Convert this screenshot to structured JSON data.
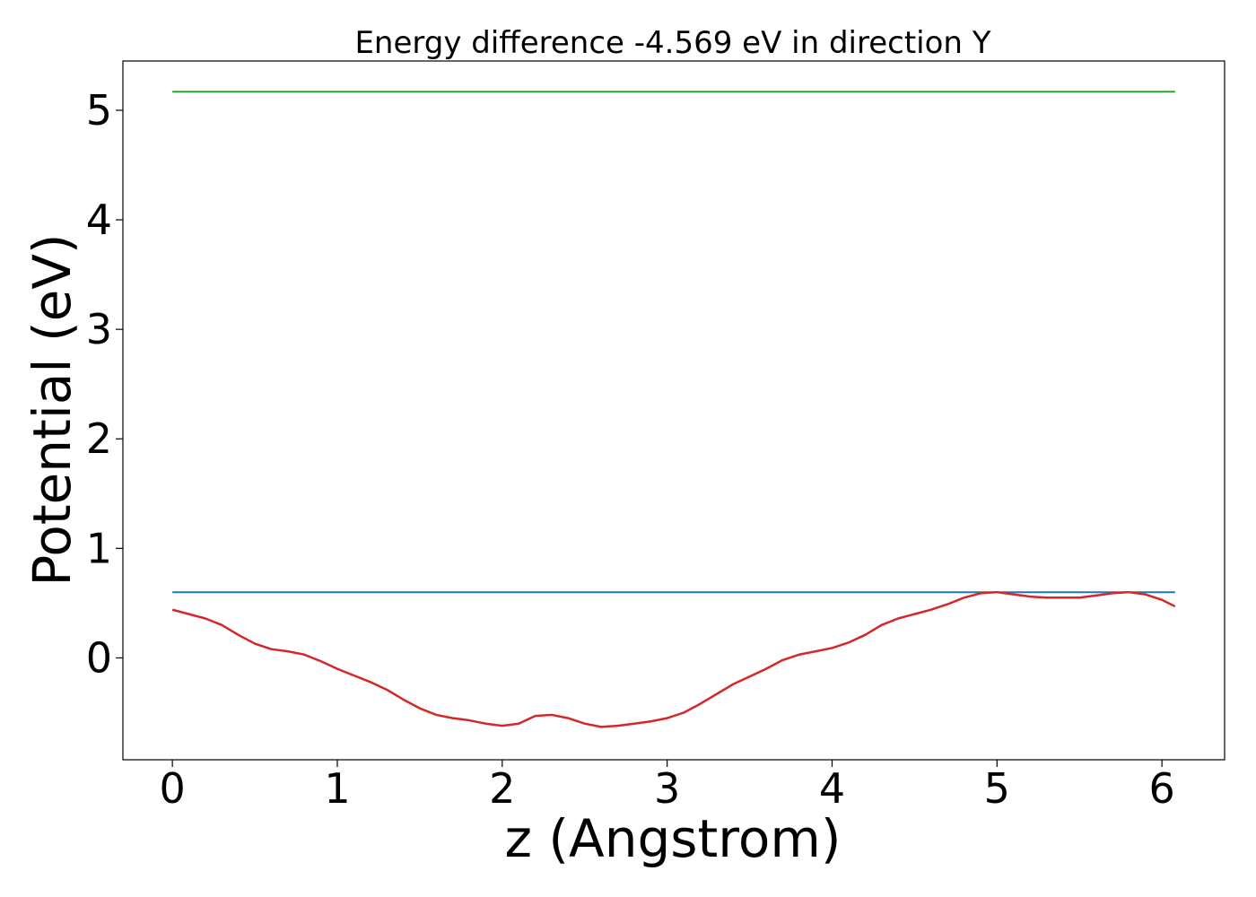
{
  "chart_data": {
    "type": "line",
    "title": "Energy difference -4.569 eV in direction Y",
    "xlabel": "z (Angstrom)",
    "ylabel": "Potential (eV)",
    "xlim": [
      -0.3,
      6.38
    ],
    "ylim": [
      -0.93,
      5.45
    ],
    "xticks": [
      "0",
      "1",
      "2",
      "3",
      "4",
      "5",
      "6"
    ],
    "yticks": [
      "0",
      "1",
      "2",
      "3",
      "4",
      "5"
    ],
    "grid": false,
    "legend": "none",
    "series": [
      {
        "color": "#2ca02c",
        "x": [
          0,
          6.08
        ],
        "y": [
          5.17,
          5.17
        ]
      },
      {
        "color": "#1f77b4",
        "x": [
          0,
          6.08
        ],
        "y": [
          0.6,
          0.6
        ]
      },
      {
        "color": "#d62728",
        "x": [
          0,
          0.1,
          0.2,
          0.3,
          0.4,
          0.5,
          0.6,
          0.7,
          0.8,
          0.9,
          1.0,
          1.1,
          1.2,
          1.3,
          1.4,
          1.5,
          1.6,
          1.7,
          1.8,
          1.9,
          2.0,
          2.1,
          2.2,
          2.3,
          2.4,
          2.5,
          2.6,
          2.7,
          2.8,
          2.9,
          3.0,
          3.1,
          3.2,
          3.3,
          3.4,
          3.5,
          3.6,
          3.7,
          3.8,
          3.9,
          4.0,
          4.1,
          4.2,
          4.3,
          4.4,
          4.5,
          4.6,
          4.7,
          4.8,
          4.9,
          5.0,
          5.1,
          5.2,
          5.3,
          5.4,
          5.5,
          5.6,
          5.7,
          5.8,
          5.9,
          6.0,
          6.08
        ],
        "y": [
          0.44,
          0.4,
          0.36,
          0.3,
          0.21,
          0.13,
          0.08,
          0.06,
          0.03,
          -0.03,
          -0.1,
          -0.16,
          -0.22,
          -0.29,
          -0.38,
          -0.46,
          -0.52,
          -0.55,
          -0.57,
          -0.6,
          -0.62,
          -0.6,
          -0.53,
          -0.52,
          -0.55,
          -0.6,
          -0.63,
          -0.62,
          -0.6,
          -0.58,
          -0.55,
          -0.5,
          -0.42,
          -0.33,
          -0.24,
          -0.17,
          -0.1,
          -0.02,
          0.03,
          0.06,
          0.09,
          0.14,
          0.21,
          0.3,
          0.36,
          0.4,
          0.44,
          0.49,
          0.55,
          0.59,
          0.6,
          0.58,
          0.56,
          0.55,
          0.55,
          0.55,
          0.57,
          0.59,
          0.6,
          0.58,
          0.53,
          0.47
        ]
      }
    ]
  }
}
